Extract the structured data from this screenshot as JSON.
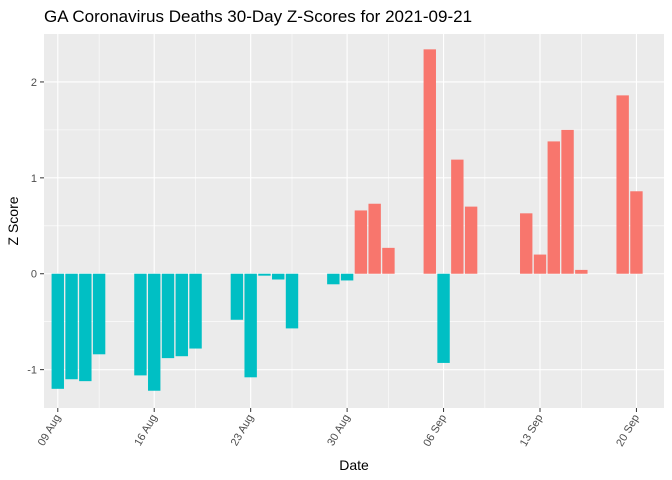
{
  "chart_data": {
    "type": "bar",
    "title": "GA Coronavirus Deaths 30-Day Z-Scores for 2021-09-21",
    "xlabel": "Date",
    "ylabel": "Z Score",
    "x_start": "2021-08-08",
    "x_end": "2021-09-22",
    "ylim": [
      -1.4,
      2.5
    ],
    "yticks": [
      -1,
      0,
      1,
      2
    ],
    "y_tick_labels": [
      "-1",
      "0",
      "1",
      "2"
    ],
    "xticks": [
      {
        "date": "2021-08-09",
        "label": "09 Aug"
      },
      {
        "date": "2021-08-16",
        "label": "16 Aug"
      },
      {
        "date": "2021-08-23",
        "label": "23 Aug"
      },
      {
        "date": "2021-08-30",
        "label": "30 Aug"
      },
      {
        "date": "2021-09-06",
        "label": "06 Sep"
      },
      {
        "date": "2021-09-13",
        "label": "13 Sep"
      },
      {
        "date": "2021-09-20",
        "label": "20 Sep"
      }
    ],
    "colors": {
      "negative": "#00BFC4",
      "positive": "#F8766D",
      "panel": "#ebebeb",
      "grid": "#ffffff"
    },
    "grid": true,
    "legend": "none",
    "series": [
      {
        "x": [
          "2021-08-09",
          "2021-08-10",
          "2021-08-11",
          "2021-08-12",
          "2021-08-15",
          "2021-08-16",
          "2021-08-17",
          "2021-08-18",
          "2021-08-19",
          "2021-08-22",
          "2021-08-23",
          "2021-08-24",
          "2021-08-25",
          "2021-08-26",
          "2021-08-29",
          "2021-08-30",
          "2021-08-31",
          "2021-09-01",
          "2021-09-02",
          "2021-09-05",
          "2021-09-06",
          "2021-09-07",
          "2021-09-08",
          "2021-09-12",
          "2021-09-13",
          "2021-09-14",
          "2021-09-15",
          "2021-09-16",
          "2021-09-19",
          "2021-09-20"
        ],
        "values": [
          -1.2,
          -1.1,
          -1.12,
          -0.84,
          -1.06,
          -1.22,
          -0.88,
          -0.86,
          -0.78,
          -0.48,
          -1.08,
          -0.02,
          -0.06,
          -0.57,
          -0.11,
          -0.07,
          0.66,
          0.73,
          0.27,
          2.34,
          -0.93,
          1.19,
          0.7,
          0.63,
          0.2,
          1.38,
          1.5,
          0.04,
          1.86,
          0.86
        ]
      }
    ]
  }
}
